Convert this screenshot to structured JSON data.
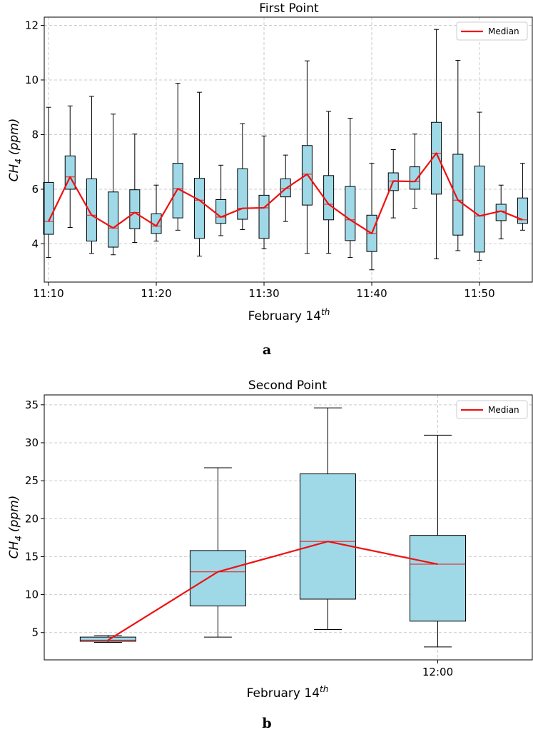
{
  "chart_data": [
    {
      "type": "box",
      "panel_label": "a",
      "title": "First Point",
      "ylabel_main": "CH",
      "ylabel_sub": "4",
      "ylabel_unit": "(ppm)",
      "xlabel_main": "February 14",
      "xlabel_sup": "th",
      "legend": "Median",
      "ylim": [
        2.6,
        12.3
      ],
      "yticks": [
        4,
        6,
        8,
        10,
        12
      ],
      "xlim": [
        69.6,
        114.9
      ],
      "xticks": [
        {
          "label": "11:10",
          "x": 70
        },
        {
          "label": "11:20",
          "x": 80
        },
        {
          "label": "11:30",
          "x": 90
        },
        {
          "label": "11:40",
          "x": 100
        },
        {
          "label": "11:50",
          "x": 110
        }
      ],
      "boxes": [
        {
          "x": 70,
          "min": 3.5,
          "q1": 4.35,
          "median": 4.82,
          "q3": 6.25,
          "max": 9.0
        },
        {
          "x": 72,
          "min": 4.6,
          "q1": 6.0,
          "median": 6.45,
          "q3": 7.22,
          "max": 9.05
        },
        {
          "x": 74,
          "min": 3.65,
          "q1": 4.1,
          "median": 5.05,
          "q3": 6.38,
          "max": 9.4
        },
        {
          "x": 76,
          "min": 3.6,
          "q1": 3.88,
          "median": 4.58,
          "q3": 5.9,
          "max": 8.75
        },
        {
          "x": 78,
          "min": 4.05,
          "q1": 4.55,
          "median": 5.15,
          "q3": 5.98,
          "max": 8.02
        },
        {
          "x": 80,
          "min": 4.1,
          "q1": 4.38,
          "median": 4.65,
          "q3": 5.1,
          "max": 6.15
        },
        {
          "x": 82,
          "min": 4.5,
          "q1": 4.95,
          "median": 6.02,
          "q3": 6.95,
          "max": 9.88
        },
        {
          "x": 84,
          "min": 3.55,
          "q1": 4.2,
          "median": 5.6,
          "q3": 6.4,
          "max": 9.55
        },
        {
          "x": 86,
          "min": 4.3,
          "q1": 4.75,
          "median": 4.98,
          "q3": 5.62,
          "max": 6.88
        },
        {
          "x": 88,
          "min": 4.52,
          "q1": 4.9,
          "median": 5.3,
          "q3": 6.75,
          "max": 8.4
        },
        {
          "x": 90,
          "min": 3.82,
          "q1": 4.2,
          "median": 5.32,
          "q3": 5.78,
          "max": 7.95
        },
        {
          "x": 92,
          "min": 4.82,
          "q1": 5.72,
          "median": 6.02,
          "q3": 6.38,
          "max": 7.25
        },
        {
          "x": 94,
          "min": 3.65,
          "q1": 5.42,
          "median": 6.55,
          "q3": 7.6,
          "max": 10.7
        },
        {
          "x": 96,
          "min": 3.65,
          "q1": 4.88,
          "median": 5.45,
          "q3": 6.5,
          "max": 8.85
        },
        {
          "x": 98,
          "min": 3.5,
          "q1": 4.12,
          "median": 4.88,
          "q3": 6.1,
          "max": 8.6
        },
        {
          "x": 100,
          "min": 3.05,
          "q1": 3.72,
          "median": 4.38,
          "q3": 5.05,
          "max": 6.95
        },
        {
          "x": 102,
          "min": 4.95,
          "q1": 5.95,
          "median": 6.3,
          "q3": 6.6,
          "max": 7.45
        },
        {
          "x": 104,
          "min": 5.3,
          "q1": 6.0,
          "median": 6.28,
          "q3": 6.82,
          "max": 8.02
        },
        {
          "x": 106,
          "min": 3.45,
          "q1": 5.82,
          "median": 7.32,
          "q3": 8.45,
          "max": 11.85
        },
        {
          "x": 108,
          "min": 3.75,
          "q1": 4.32,
          "median": 5.6,
          "q3": 7.28,
          "max": 10.72
        },
        {
          "x": 110,
          "min": 3.4,
          "q1": 3.7,
          "median": 5.02,
          "q3": 6.85,
          "max": 8.82
        },
        {
          "x": 112,
          "min": 4.18,
          "q1": 4.85,
          "median": 5.2,
          "q3": 5.45,
          "max": 6.15
        },
        {
          "x": 114,
          "min": 4.5,
          "q1": 4.75,
          "median": 4.88,
          "q3": 5.68,
          "max": 6.95
        }
      ]
    },
    {
      "type": "box",
      "panel_label": "b",
      "title": "Second Point",
      "ylabel_main": "CH",
      "ylabel_sub": "4",
      "ylabel_unit": "(ppm)",
      "xlabel_main": "February 14",
      "xlabel_sup": "th",
      "legend": "Median",
      "ylim": [
        1.4,
        36.3
      ],
      "yticks": [
        5,
        10,
        15,
        20,
        25,
        30,
        35
      ],
      "xlim": [
        0.42,
        4.86
      ],
      "xticks": [
        {
          "label": "12:00",
          "x": 4
        }
      ],
      "boxes": [
        {
          "x": 1,
          "min": 3.7,
          "q1": 3.85,
          "median": 4.0,
          "q3": 4.4,
          "max": 4.6
        },
        {
          "x": 2,
          "min": 4.4,
          "q1": 8.5,
          "median": 13.0,
          "q3": 15.8,
          "max": 26.7
        },
        {
          "x": 3,
          "min": 5.4,
          "q1": 9.4,
          "median": 17.0,
          "q3": 25.9,
          "max": 34.6
        },
        {
          "x": 4,
          "min": 3.1,
          "q1": 6.5,
          "median": 14.0,
          "q3": 17.8,
          "max": 31.0
        }
      ]
    }
  ],
  "colors": {
    "box_fill": "#9fd9e8",
    "box_edge": "#000000",
    "median_line": "#ee1111",
    "grid": "#cccccc"
  }
}
